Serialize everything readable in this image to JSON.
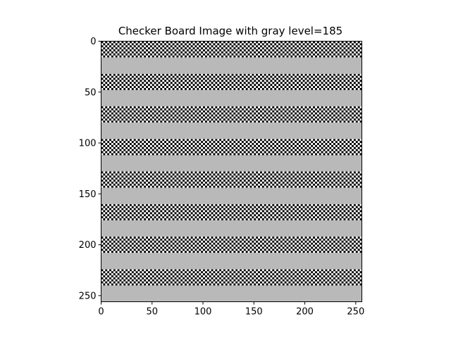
{
  "chart_data": {
    "type": "heatmap",
    "title": "Checker Board Image with gray level=185",
    "image_size": 256,
    "gray_level": 185,
    "checker_cell_size": 2,
    "band_height": 16,
    "band_pattern": [
      "checker",
      "gray"
    ],
    "colormap": "gray",
    "xlim": [
      0,
      256
    ],
    "ylim": [
      256,
      0
    ],
    "x_ticks": [
      0,
      50,
      100,
      150,
      200,
      250
    ],
    "y_ticks": [
      0,
      50,
      100,
      150,
      200,
      250
    ],
    "grid": false
  },
  "colors": {
    "gray_fill": "#b9b9b9",
    "checker_dark": "#000000",
    "checker_light": "#ffffff",
    "axis": "#000000"
  }
}
